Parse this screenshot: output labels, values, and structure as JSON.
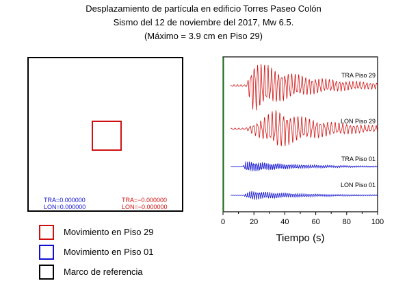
{
  "title": {
    "line1": "Desplazamiento de partícula en edificio Torres Paseo Colón",
    "line2": "Sismo del 12 de noviembre del 2017, Mw 6.5.",
    "line3": "(Máximo = 3.9 cm en Piso 29)"
  },
  "readout": {
    "piso01_tra": "TRA=0.000000",
    "piso01_lon": "LON=0.000000",
    "piso29_tra": "TRA=−0.000000",
    "piso29_lon": "LON=−0.000000"
  },
  "legend": [
    {
      "label": "Movimiento en Piso 29",
      "color": "#d01010"
    },
    {
      "label": "Movimiento en Piso 01",
      "color": "#1010d0"
    },
    {
      "label": "Marco de referencia",
      "color": "#000000"
    }
  ],
  "chart_data": {
    "type": "line",
    "xlabel": "Tiempo (s)",
    "xlim": [
      0,
      100
    ],
    "xticks": [
      0,
      20,
      40,
      60,
      80,
      100
    ],
    "cursor_time": 0,
    "cursor_color": "#1a6e1a",
    "series": [
      {
        "name": "TRA Piso 29",
        "color": "#d01010",
        "onset": 15,
        "peak_time": 20,
        "amplitude": 1.0,
        "period": 2.2
      },
      {
        "name": "LON Piso 29",
        "color": "#d01010",
        "onset": 15,
        "peak_time": 35,
        "amplitude": 0.75,
        "period": 2.4
      },
      {
        "name": "TRA Piso 01",
        "color": "#1010d0",
        "onset": 13,
        "peak_time": 15,
        "amplitude": 0.22,
        "period": 1.2
      },
      {
        "name": "LON Piso 01",
        "color": "#1010d0",
        "onset": 13,
        "peak_time": 18,
        "amplitude": 0.18,
        "period": 1.3
      }
    ]
  }
}
